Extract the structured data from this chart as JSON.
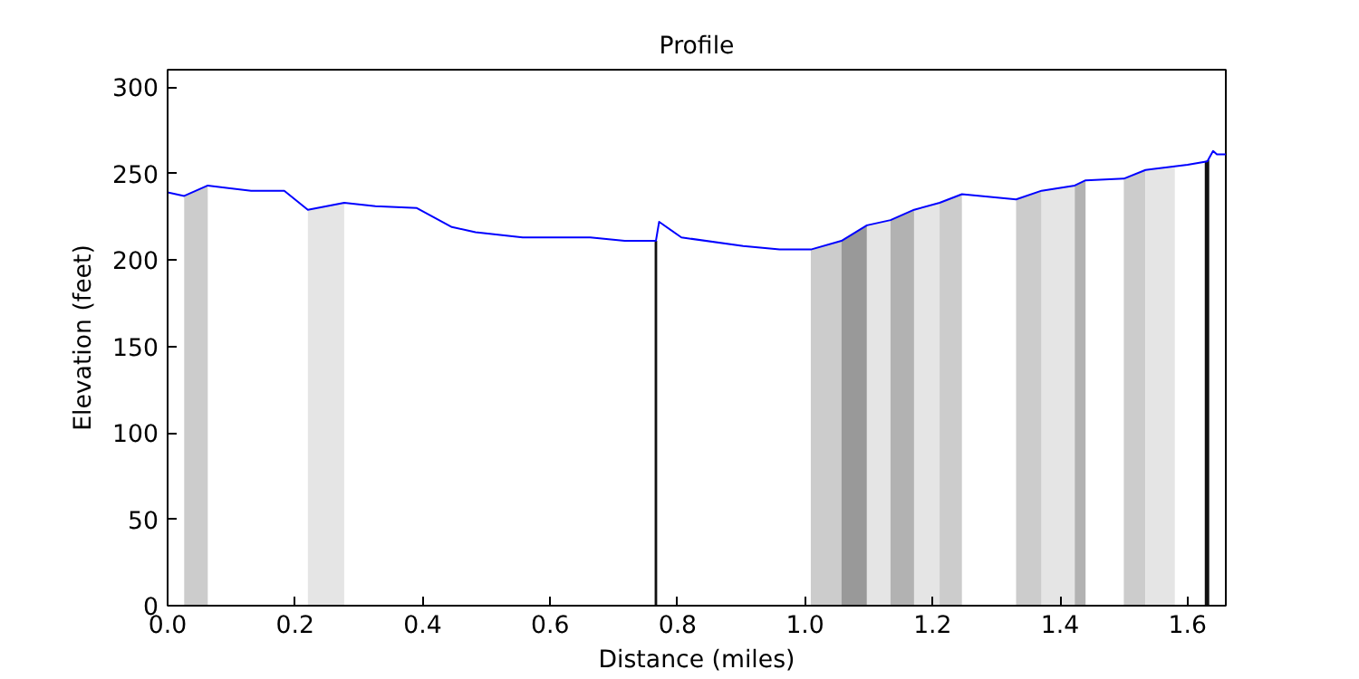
{
  "chart_data": {
    "type": "line",
    "title": "Profile",
    "xlabel": "Distance (miles)",
    "ylabel": "Elevation (feet)",
    "xlim": [
      0,
      1.66
    ],
    "ylim": [
      0,
      310
    ],
    "xticks": [
      {
        "value": 0,
        "label": "0.0"
      },
      {
        "value": 0.2,
        "label": "0.2"
      },
      {
        "value": 0.4,
        "label": "0.4"
      },
      {
        "value": 0.6,
        "label": "0.6"
      },
      {
        "value": 0.8,
        "label": "0.8"
      },
      {
        "value": 1.0,
        "label": "1.0"
      },
      {
        "value": 1.2,
        "label": "1.2"
      },
      {
        "value": 1.4,
        "label": "1.4"
      },
      {
        "value": 1.6,
        "label": "1.6"
      }
    ],
    "yticks": [
      0,
      50,
      100,
      150,
      200,
      250,
      300
    ],
    "grid": false,
    "series": [
      {
        "type": "area",
        "color": "#cccccc",
        "x": [
          0.026,
          0.063
        ],
        "values": [
          237,
          243
        ]
      },
      {
        "type": "area",
        "color": "#e5e5e5",
        "x": [
          0.22,
          0.277
        ],
        "values": [
          229,
          233
        ]
      },
      {
        "type": "area",
        "color": "#111111",
        "x": [
          0.764,
          0.768
        ],
        "values": [
          211,
          211
        ]
      },
      {
        "type": "area",
        "color": "#cccccc",
        "x": [
          1.009,
          1.057
        ],
        "values": [
          206,
          211
        ]
      },
      {
        "type": "area",
        "color": "#999999",
        "x": [
          1.057,
          1.097
        ],
        "values": [
          211,
          220
        ]
      },
      {
        "type": "area",
        "color": "#e5e5e5",
        "x": [
          1.097,
          1.134
        ],
        "values": [
          220,
          223
        ]
      },
      {
        "type": "area",
        "color": "#b2b2b2",
        "x": [
          1.134,
          1.171
        ],
        "values": [
          223,
          229
        ]
      },
      {
        "type": "area",
        "color": "#e5e5e5",
        "x": [
          1.171,
          1.211
        ],
        "values": [
          229,
          233
        ]
      },
      {
        "type": "area",
        "color": "#cccccc",
        "x": [
          1.211,
          1.246
        ],
        "values": [
          233,
          238
        ]
      },
      {
        "type": "area",
        "color": "#cccccc",
        "x": [
          1.331,
          1.371
        ],
        "values": [
          235,
          240
        ]
      },
      {
        "type": "area",
        "color": "#e5e5e5",
        "x": [
          1.371,
          1.423
        ],
        "values": [
          240,
          243
        ]
      },
      {
        "type": "area",
        "color": "#b2b2b2",
        "x": [
          1.423,
          1.44
        ],
        "values": [
          243,
          246
        ]
      },
      {
        "type": "area",
        "color": "#cccccc",
        "x": [
          1.5,
          1.534
        ],
        "values": [
          247,
          252
        ]
      },
      {
        "type": "area",
        "color": "#e5e5e5",
        "x": [
          1.534,
          1.58
        ],
        "values": [
          252,
          254
        ]
      },
      {
        "type": "area",
        "color": "#111111",
        "x": [
          1.627,
          1.634
        ],
        "values": [
          257,
          258
        ]
      },
      {
        "color": "#0000ff",
        "x": [
          0,
          0.026,
          0.063,
          0.131,
          0.183,
          0.22,
          0.277,
          0.326,
          0.391,
          0.446,
          0.483,
          0.557,
          0.663,
          0.717,
          0.766,
          0.771,
          0.806,
          0.903,
          0.96,
          1.009,
          1.057,
          1.097,
          1.134,
          1.171,
          1.211,
          1.246,
          1.331,
          1.371,
          1.423,
          1.44,
          1.5,
          1.534,
          1.6,
          1.631,
          1.64,
          1.646,
          1.66
        ],
        "values": [
          239,
          237,
          243,
          240,
          240,
          229,
          233,
          231,
          230,
          219,
          216,
          213,
          213,
          211,
          211,
          222,
          213,
          208,
          206,
          206,
          211,
          220,
          223,
          229,
          233,
          238,
          235,
          240,
          243,
          246,
          247,
          252,
          255,
          257,
          263,
          261,
          261
        ]
      }
    ]
  }
}
